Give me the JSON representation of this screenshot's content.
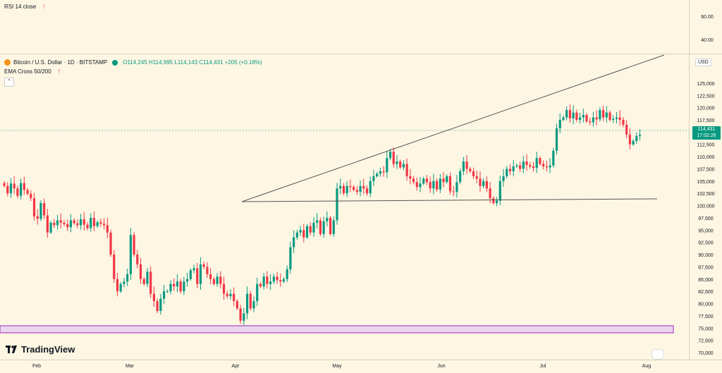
{
  "rsi_pane": {
    "label": "RSI 14 close",
    "alert_glyph": "!",
    "ticks": [
      "60.00",
      "40.00"
    ]
  },
  "main_legend": {
    "symbol": "Bitcoin / U.S. Dollar · 1D · BITSTAMP",
    "ohlc": "O114,245 H114,995 L114,143 C114,431 +205 (+0.18%)",
    "indicator": "EMA Cross 50/200",
    "alert_glyph": "!",
    "collapse_glyph": "⌃"
  },
  "currency_button": "USD",
  "last_price": {
    "value": "114,431",
    "countdown": "17:02:26"
  },
  "logo": "TradingView",
  "colors": {
    "up": "#089981",
    "down": "#f23645",
    "background": "#fdf6e3",
    "band": "#e1bee7",
    "band_border": "#9c27b0"
  },
  "chart_data": {
    "type": "candlestick",
    "title": "Bitcoin / U.S. Dollar · 1D · BITSTAMP",
    "x_labels": [
      "Feb",
      "Mar",
      "Apr",
      "May",
      "Jun",
      "Jul",
      "Aug"
    ],
    "y_ticks": [
      "125,000",
      "122,500",
      "120,000",
      "117,500",
      "115,000",
      "112,500",
      "110,000",
      "107,500",
      "105,000",
      "102,500",
      "100,000",
      "97,500",
      "95,000",
      "92,500",
      "90,000",
      "87,500",
      "85,000",
      "82,500",
      "80,000",
      "77,500",
      "75,000",
      "72,500",
      "70,000"
    ],
    "ylim": [
      70000,
      127000
    ],
    "start_date": "2025-01-19",
    "closes": [
      104000,
      102500,
      104500,
      103500,
      102000,
      104600,
      103200,
      102400,
      101500,
      97800,
      97300,
      100500,
      98000,
      94500,
      96500,
      96000,
      97000,
      96500,
      96200,
      95600,
      97000,
      96400,
      96000,
      97200,
      96100,
      95400,
      97500,
      95800,
      96600,
      96300,
      96000,
      94500,
      90000,
      85000,
      82500,
      84000,
      84500,
      86000,
      94000,
      90000,
      88000,
      85000,
      84000,
      86500,
      82000,
      80500,
      78500,
      81000,
      82500,
      82500,
      84000,
      83500,
      84500,
      82500,
      84500,
      85000,
      86800,
      87200,
      84000,
      88000,
      87500,
      86000,
      85000,
      84000,
      85500,
      84000,
      82000,
      81500,
      82000,
      80500,
      79000,
      76500,
      78000,
      82000,
      79000,
      80500,
      84000,
      83500,
      85500,
      84000,
      84500,
      85500,
      84800,
      84500,
      85000,
      87000,
      91500,
      93500,
      94500,
      95000,
      93500,
      95800,
      94500,
      96500,
      97000,
      94200,
      96800,
      97500,
      94200,
      97000,
      103500,
      104000,
      102500,
      104000,
      103800,
      103200,
      102800,
      104000,
      103500,
      102500,
      105000,
      106000,
      106500,
      107000,
      106800,
      109700,
      111000,
      108500,
      109000,
      107800,
      108500,
      106000,
      105500,
      104800,
      103800,
      104500,
      105500,
      104800,
      103500,
      105000,
      103300,
      105500,
      104800,
      106000,
      102900,
      102800,
      104800,
      107000,
      109000,
      107500,
      107000,
      106000,
      105500,
      104000,
      105000,
      103500,
      101500,
      100500,
      101000,
      105000,
      106000,
      107500,
      107000,
      108000,
      108200,
      107500,
      109000,
      108300,
      108000,
      107700,
      109700,
      108500,
      108000,
      107800,
      108200,
      111200,
      115800,
      117500,
      118000,
      119500,
      117800,
      119000,
      117500,
      118000,
      118500,
      117200,
      117000,
      118000,
      117600,
      119500,
      118000,
      119000,
      117500,
      117700,
      118000,
      117500,
      116500,
      114500,
      112500,
      113200,
      114200,
      114431
    ]
  }
}
